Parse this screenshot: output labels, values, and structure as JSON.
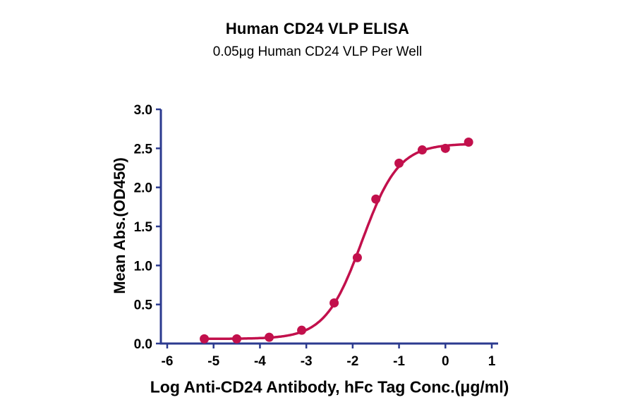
{
  "chart_data": {
    "type": "scatter",
    "title": "Human CD24 VLP ELISA",
    "subtitle": "0.05μg Human CD24 VLP Per Well",
    "xlabel": "Log Anti-CD24 Antibody, hFc Tag Conc.(μg/ml)",
    "ylabel": "Mean Abs.(OD450)",
    "xlim": [
      -6,
      1
    ],
    "ylim": [
      0,
      3
    ],
    "xticks": [
      -6,
      -5,
      -4,
      -3,
      -2,
      -1,
      0,
      1
    ],
    "yticks": [
      0,
      0.5,
      1,
      1.5,
      2,
      2.5,
      3
    ],
    "grid": false,
    "legend": "none",
    "points": [
      {
        "x": -5.2,
        "y": 0.06
      },
      {
        "x": -4.5,
        "y": 0.06
      },
      {
        "x": -3.8,
        "y": 0.08
      },
      {
        "x": -3.1,
        "y": 0.17
      },
      {
        "x": -2.4,
        "y": 0.52
      },
      {
        "x": -1.9,
        "y": 1.1
      },
      {
        "x": -1.5,
        "y": 1.85
      },
      {
        "x": -1.0,
        "y": 2.31
      },
      {
        "x": -0.5,
        "y": 2.48
      },
      {
        "x": 0.0,
        "y": 2.5
      },
      {
        "x": 0.5,
        "y": 2.58
      }
    ],
    "fit_4pl": {
      "bottom": 0.06,
      "top": 2.56,
      "logec50": -1.8,
      "hillslope": 1.1
    },
    "curve_color": "#c2104c",
    "axis_color": "#2b3a8f",
    "text_color": "#000000"
  }
}
